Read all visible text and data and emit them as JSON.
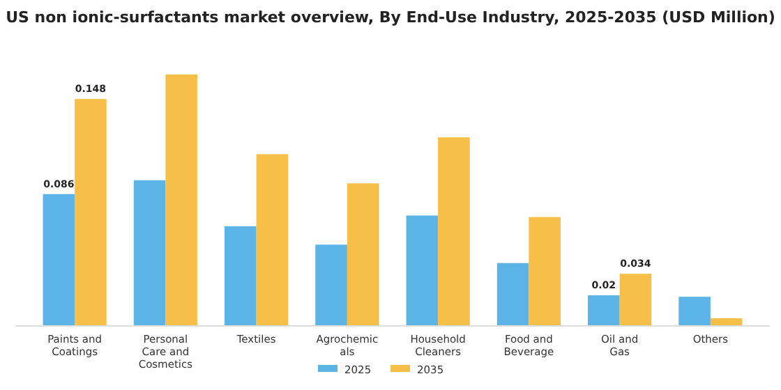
{
  "chart_data": {
    "type": "bar",
    "title": "US non ionic-surfactants market overview, By End-Use Industry, 2025-2035 (USD Million)",
    "categories": [
      "Paints and Coatings",
      "Personal Care and Cosmetics",
      "Textiles",
      "Agrochemicals",
      "Household Cleaners",
      "Food and Beverage",
      "Oil and Gas",
      "Others"
    ],
    "series": [
      {
        "name": "2025",
        "color": "#5cb3e6",
        "values": [
          0.086,
          0.095,
          0.065,
          0.053,
          0.072,
          0.041,
          0.02,
          0.019
        ],
        "value_labels": [
          "0.086",
          null,
          null,
          null,
          null,
          null,
          "0.02",
          null
        ]
      },
      {
        "name": "2035",
        "color": "#f7bf47",
        "values": [
          0.148,
          0.164,
          0.112,
          0.093,
          0.123,
          0.071,
          0.034,
          0.005
        ],
        "value_labels": [
          "0.148",
          null,
          null,
          null,
          null,
          null,
          "0.034",
          null
        ]
      }
    ],
    "legend": "bottom",
    "grid": false
  }
}
